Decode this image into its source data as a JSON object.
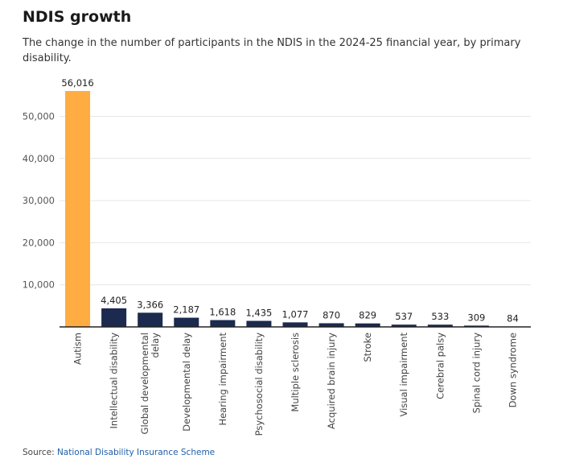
{
  "header": {
    "title": "NDIS growth",
    "subtitle": "The change in the number of participants in the NDIS in the 2024-25 financial year, by primary disability."
  },
  "footer": {
    "source_prefix": "Source: ",
    "source_link": "National Disability Insurance Scheme"
  },
  "colors": {
    "highlight": "#FFAC42",
    "bar": "#1B2A4E",
    "grid": "#e6e6e6",
    "axis": "#222222"
  },
  "chart_data": {
    "type": "bar",
    "categories": [
      "Autism",
      "Intellectual disability",
      "Global developmental delay",
      "Developmental delay",
      "Hearing impairment",
      "Psychosocial disability",
      "Multiple sclerosis",
      "Acquired brain injury",
      "Stroke",
      "Visual impairment",
      "Cerebral palsy",
      "Spinal cord injury",
      "Down syndrome"
    ],
    "category_lines": [
      [
        "Autism"
      ],
      [
        "Intellectual disability"
      ],
      [
        "Global developmental",
        "delay"
      ],
      [
        "Developmental delay"
      ],
      [
        "Hearing impairment"
      ],
      [
        "Psychosocial disability"
      ],
      [
        "Multiple sclerosis"
      ],
      [
        "Acquired brain injury"
      ],
      [
        "Stroke"
      ],
      [
        "Visual impairment"
      ],
      [
        "Cerebral palsy"
      ],
      [
        "Spinal cord injury"
      ],
      [
        "Down syndrome"
      ]
    ],
    "values": [
      56016,
      4405,
      3366,
      2187,
      1618,
      1435,
      1077,
      870,
      829,
      537,
      533,
      309,
      84
    ],
    "value_labels": [
      "56,016",
      "4,405",
      "3,366",
      "2,187",
      "1,618",
      "1,435",
      "1,077",
      "870",
      "829",
      "537",
      "533",
      "309",
      "84"
    ],
    "highlight_index": 0,
    "yticks": [
      10000,
      20000,
      30000,
      40000,
      50000
    ],
    "ytick_labels": [
      "10,000",
      "20,000",
      "30,000",
      "40,000",
      "50,000"
    ],
    "ylim": [
      0,
      56016
    ],
    "grid": true,
    "legend": "none",
    "xlabel": "",
    "ylabel": ""
  }
}
